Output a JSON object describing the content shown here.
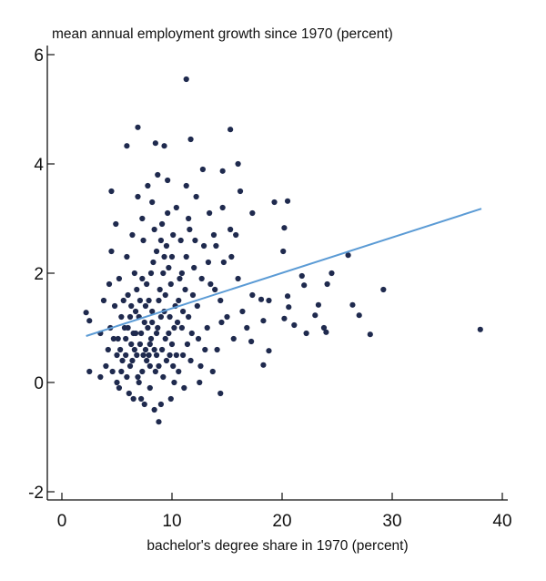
{
  "chart_data": {
    "type": "scatter",
    "title": "mean annual employment growth since 1970 (percent)",
    "xlabel": "bachelor's degree share in 1970 (percent)",
    "ylabel": "",
    "xlim": [
      -1.3,
      40.8
    ],
    "ylim": [
      -2.1,
      6.2
    ],
    "xticks": [
      0,
      10,
      20,
      30,
      40
    ],
    "yticks": [
      6,
      4,
      2,
      0,
      -2
    ],
    "grid": false,
    "colors": {
      "points": "#1f2a4e",
      "trend_line": "#5b9bd5"
    },
    "trend_line": [
      [
        2.2,
        0.85
      ],
      [
        38.1,
        3.18
      ]
    ],
    "points": [
      [
        11.3,
        5.55
      ],
      [
        6.9,
        4.67
      ],
      [
        15.3,
        4.63
      ],
      [
        11.7,
        4.45
      ],
      [
        5.9,
        4.33
      ],
      [
        8.5,
        4.38
      ],
      [
        9.3,
        4.33
      ],
      [
        16.0,
        4.0
      ],
      [
        14.6,
        3.87
      ],
      [
        4.5,
        3.5
      ],
      [
        19.3,
        3.3
      ],
      [
        20.5,
        3.32
      ],
      [
        17.3,
        3.1
      ],
      [
        20.2,
        2.83
      ],
      [
        26.0,
        2.33
      ],
      [
        20.1,
        2.4
      ],
      [
        21.8,
        1.95
      ],
      [
        24.5,
        2.0
      ],
      [
        22.0,
        1.78
      ],
      [
        29.2,
        1.7
      ],
      [
        24.1,
        1.8
      ],
      [
        20.5,
        1.58
      ],
      [
        20.6,
        1.38
      ],
      [
        23.3,
        1.42
      ],
      [
        23.0,
        1.23
      ],
      [
        26.4,
        1.42
      ],
      [
        27.0,
        1.23
      ],
      [
        18.1,
        1.52
      ],
      [
        18.8,
        1.5
      ],
      [
        18.3,
        1.13
      ],
      [
        20.2,
        1.17
      ],
      [
        21.1,
        1.05
      ],
      [
        22.2,
        0.9
      ],
      [
        23.8,
        1.0
      ],
      [
        24.0,
        0.92
      ],
      [
        28.0,
        0.88
      ],
      [
        38.0,
        0.97
      ],
      [
        18.8,
        0.58
      ],
      [
        18.3,
        0.32
      ],
      [
        17.2,
        0.75
      ],
      [
        14.4,
        -0.2
      ],
      [
        8.8,
        -0.72
      ],
      [
        2.2,
        1.28
      ],
      [
        2.5,
        1.13
      ],
      [
        2.5,
        0.2
      ],
      [
        3.5,
        0.1
      ],
      [
        5.1,
        0.8
      ],
      [
        5.4,
        1.2
      ],
      [
        5.8,
        0.5
      ],
      [
        6.0,
        1.6
      ],
      [
        6.2,
        0.3
      ],
      [
        6.5,
        0.9
      ],
      [
        6.7,
        1.3
      ],
      [
        6.9,
        0.1
      ],
      [
        7.1,
        0.7
      ],
      [
        7.3,
        1.9
      ],
      [
        7.5,
        1.1
      ],
      [
        7.7,
        0.4
      ],
      [
        7.9,
        1.5
      ],
      [
        8.1,
        0.8
      ],
      [
        8.3,
        2.2
      ],
      [
        8.5,
        0.2
      ],
      [
        8.7,
        1.0
      ],
      [
        8.9,
        1.7
      ],
      [
        9.1,
        0.6
      ],
      [
        9.3,
        1.3
      ],
      [
        9.5,
        2.5
      ],
      [
        9.7,
        0.9
      ],
      [
        9.9,
        1.8
      ],
      [
        10.1,
        0.3
      ],
      [
        10.3,
        1.4
      ],
      [
        4.2,
        0.6
      ],
      [
        4.4,
        1.0
      ],
      [
        4.6,
        0.2
      ],
      [
        4.8,
        1.4
      ],
      [
        5.0,
        0.0
      ],
      [
        5.2,
        1.9
      ],
      [
        5.5,
        0.4
      ],
      [
        5.7,
        1.0
      ],
      [
        5.9,
        2.3
      ],
      [
        6.1,
        -0.2
      ],
      [
        6.3,
        0.7
      ],
      [
        6.6,
        2.0
      ],
      [
        6.8,
        0.5
      ],
      [
        7.0,
        1.2
      ],
      [
        7.2,
        -0.3
      ],
      [
        7.4,
        2.6
      ],
      [
        7.6,
        0.6
      ],
      [
        7.8,
        1.0
      ],
      [
        8.0,
        -0.1
      ],
      [
        8.2,
        1.3
      ],
      [
        8.4,
        2.8
      ],
      [
        8.6,
        0.5
      ],
      [
        8.8,
        1.5
      ],
      [
        9.0,
        -0.4
      ],
      [
        9.2,
        2.0
      ],
      [
        9.4,
        0.8
      ],
      [
        9.6,
        3.1
      ],
      [
        9.8,
        1.2
      ],
      [
        10.0,
        2.3
      ],
      [
        10.2,
        0.0
      ],
      [
        10.5,
        1.1
      ],
      [
        10.8,
        2.6
      ],
      [
        11.0,
        0.5
      ],
      [
        11.2,
        1.7
      ],
      [
        11.5,
        3.0
      ],
      [
        11.8,
        0.9
      ],
      [
        12.0,
        2.1
      ],
      [
        12.3,
        1.4
      ],
      [
        12.6,
        0.3
      ],
      [
        12.9,
        2.5
      ],
      [
        13.2,
        1.0
      ],
      [
        13.5,
        1.8
      ],
      [
        13.8,
        2.7
      ],
      [
        14.1,
        0.6
      ],
      [
        14.4,
        1.5
      ],
      [
        14.7,
        2.2
      ],
      [
        15.0,
        1.2
      ],
      [
        15.3,
        2.8
      ],
      [
        15.6,
        0.8
      ],
      [
        16.0,
        1.9
      ],
      [
        16.4,
        1.3
      ],
      [
        16.8,
        1.0
      ],
      [
        17.3,
        1.6
      ],
      [
        3.5,
        0.9
      ],
      [
        3.8,
        1.5
      ],
      [
        4.0,
        0.3
      ],
      [
        4.3,
        1.8
      ],
      [
        4.5,
        2.4
      ],
      [
        4.7,
        0.8
      ],
      [
        4.9,
        2.9
      ],
      [
        5.3,
        0.6
      ],
      [
        5.6,
        1.5
      ],
      [
        6.4,
        2.7
      ],
      [
        6.9,
        3.4
      ],
      [
        7.3,
        3.0
      ],
      [
        7.8,
        3.6
      ],
      [
        8.2,
        3.3
      ],
      [
        8.7,
        3.8
      ],
      [
        9.1,
        2.9
      ],
      [
        9.6,
        3.7
      ],
      [
        10.4,
        3.2
      ],
      [
        10.9,
        2.0
      ],
      [
        11.3,
        3.6
      ],
      [
        12.2,
        3.4
      ],
      [
        12.8,
        3.9
      ],
      [
        13.4,
        3.1
      ],
      [
        14.0,
        2.5
      ],
      [
        14.6,
        3.2
      ],
      [
        15.4,
        2.3
      ],
      [
        15.8,
        2.7
      ],
      [
        16.2,
        3.5
      ],
      [
        5.2,
        -0.1
      ],
      [
        5.9,
        0.1
      ],
      [
        6.5,
        -0.3
      ],
      [
        7.0,
        0.0
      ],
      [
        7.5,
        -0.4
      ],
      [
        8.0,
        0.3
      ],
      [
        8.4,
        -0.5
      ],
      [
        9.2,
        0.1
      ],
      [
        9.9,
        -0.3
      ],
      [
        10.6,
        0.2
      ],
      [
        11.1,
        -0.1
      ],
      [
        11.7,
        0.4
      ],
      [
        12.5,
        0.0
      ],
      [
        13.0,
        0.6
      ],
      [
        13.7,
        0.2
      ],
      [
        6.0,
        1.0
      ],
      [
        6.2,
        1.2
      ],
      [
        6.6,
        0.6
      ],
      [
        7.2,
        0.9
      ],
      [
        7.4,
        0.5
      ],
      [
        7.6,
        1.4
      ],
      [
        8.0,
        0.7
      ],
      [
        8.2,
        1.1
      ],
      [
        8.6,
        0.9
      ],
      [
        9.0,
        1.2
      ],
      [
        9.4,
        1.6
      ],
      [
        9.8,
        0.5
      ],
      [
        10.2,
        1.0
      ],
      [
        10.6,
        1.5
      ],
      [
        11.0,
        1.3
      ],
      [
        11.4,
        0.7
      ],
      [
        11.9,
        1.6
      ],
      [
        12.4,
        0.8
      ],
      [
        6.3,
        1.4
      ],
      [
        6.8,
        1.7
      ],
      [
        7.1,
        1.5
      ],
      [
        7.7,
        1.8
      ],
      [
        8.1,
        2.0
      ],
      [
        8.6,
        2.4
      ],
      [
        9.0,
        2.6
      ],
      [
        9.3,
        2.3
      ],
      [
        9.7,
        2.1
      ],
      [
        10.1,
        2.7
      ],
      [
        10.7,
        1.9
      ],
      [
        11.3,
        2.3
      ],
      [
        11.6,
        2.8
      ],
      [
        12.1,
        2.6
      ],
      [
        12.7,
        1.9
      ],
      [
        13.3,
        2.2
      ],
      [
        13.9,
        1.7
      ],
      [
        14.5,
        1.1
      ],
      [
        5.0,
        0.5
      ],
      [
        5.4,
        0.2
      ],
      [
        5.8,
        0.8
      ],
      [
        6.4,
        0.4
      ],
      [
        6.7,
        0.9
      ],
      [
        7.3,
        0.2
      ],
      [
        7.9,
        0.5
      ],
      [
        8.4,
        0.6
      ],
      [
        8.8,
        0.3
      ],
      [
        9.5,
        0.4
      ],
      [
        10.0,
        0.7
      ],
      [
        10.4,
        0.5
      ],
      [
        10.9,
        1.0
      ],
      [
        11.5,
        1.2
      ]
    ]
  }
}
